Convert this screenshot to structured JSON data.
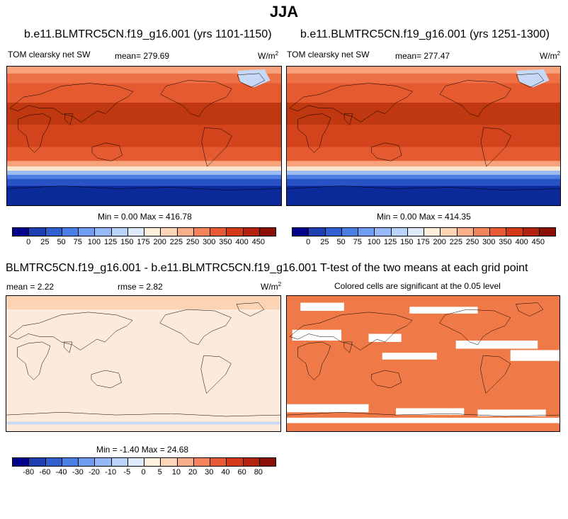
{
  "main_title": "JJA",
  "panels": [
    {
      "title": "b.e11.BLMTRC5CN.f19_g16.001 (yrs 1101-1150)",
      "variable": "TOM clearsky net SW",
      "mean_label": "mean= 279.69",
      "units": "W/m",
      "units_exp": "2",
      "minmax": "Min =   0.00 Max = 416.78"
    },
    {
      "title": "b.e11.BLMTRC5CN.f19_g16.001 (yrs 1251-1300)",
      "variable": "TOM clearsky net SW",
      "mean_label": "mean= 277.47",
      "units": "W/m",
      "units_exp": "2",
      "minmax": "Min =   0.00 Max = 414.35"
    }
  ],
  "diff_panel": {
    "title": "BLMTRC5CN.f19_g16.001 - b.e11.BLMTRC5CN.f19_g16.001",
    "mean_label": "mean =   2.22",
    "rmse_label": "rmse =   2.82",
    "units": "W/m",
    "units_exp": "2",
    "minmax": "Min =  -1.40 Max =  24.68"
  },
  "ttest_panel": {
    "title": "T-test of the two means at each grid point",
    "subtitle": "Colored cells are significant at the 0.05 level"
  },
  "colorbar_abs": {
    "labels": [
      "0",
      "25",
      "50",
      "75",
      "100",
      "125",
      "150",
      "175",
      "200",
      "225",
      "250",
      "300",
      "350",
      "400",
      "450"
    ],
    "colors": [
      "#00008b",
      "#1e3fb0",
      "#2f5fd0",
      "#4a7fe6",
      "#6f9cf0",
      "#95b8f6",
      "#b9d3fa",
      "#dfeafd",
      "#fff1dc",
      "#fdd6b8",
      "#f9b08a",
      "#f3845c",
      "#e85a33",
      "#d23a1a",
      "#b2220e",
      "#8a0f06"
    ]
  },
  "colorbar_diff": {
    "labels": [
      "-80",
      "-60",
      "-40",
      "-30",
      "-20",
      "-10",
      "-5",
      "0",
      "5",
      "10",
      "20",
      "30",
      "40",
      "60",
      "80"
    ],
    "colors": [
      "#00008b",
      "#1e3fb0",
      "#2f5fd0",
      "#4a7fe6",
      "#6f9cf0",
      "#95b8f6",
      "#b9d3fa",
      "#dfeafd",
      "#fff1dc",
      "#fdd6b8",
      "#f9b08a",
      "#f3845c",
      "#e85a33",
      "#d23a1a",
      "#b2220e",
      "#8a0f06"
    ]
  },
  "map_colors": {
    "ice": "#c6d8f5",
    "pale": "#fde6cf",
    "light_orange": "#f7a27a",
    "orange": "#ee7045",
    "red_orange": "#e65a30",
    "red": "#d4441c",
    "dark_red": "#c0380f",
    "light_blue": "#9dbcf2",
    "mid_blue": "#4d7fe3",
    "blue": "#2a52c7",
    "dark_blue": "#0a2a9a",
    "ttest_fill": "#ef7a47",
    "diff_fill": "#fdeadb",
    "diff_top": "#fbd4b6"
  }
}
